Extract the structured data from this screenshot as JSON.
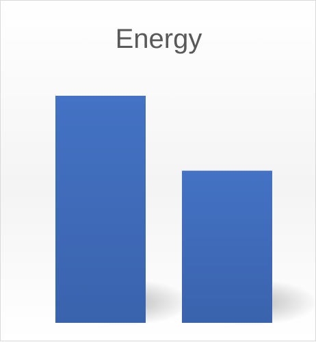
{
  "chart_data": {
    "type": "bar",
    "title": "Energy",
    "categories": [
      "",
      ""
    ],
    "series": [
      {
        "values": [
          100,
          67
        ]
      }
    ],
    "ylim": [
      0,
      100
    ],
    "colors": {
      "bar": "#4472c4",
      "bar_dark": "#3a63ad"
    },
    "grid": false,
    "legend": "none"
  }
}
